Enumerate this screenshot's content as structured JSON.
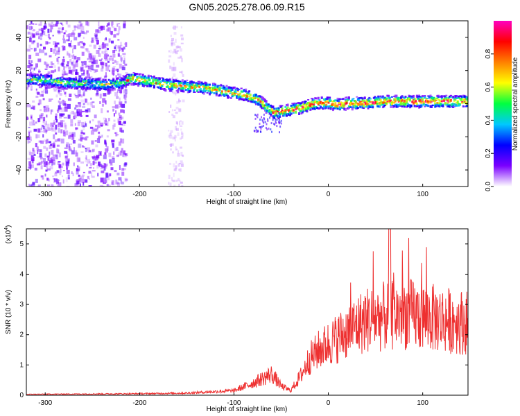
{
  "figure_title": "GN05.2025.278.06.09.R15",
  "chart_data": [
    {
      "type": "heatmap",
      "title": "",
      "xlabel": "Height of straight line (km)",
      "ylabel": "Frequency (Hz)",
      "xlim": [
        -320,
        148
      ],
      "ylim": [
        -50,
        50
      ],
      "x_ticks": [
        -300,
        -200,
        -100,
        0,
        100
      ],
      "y_ticks": [
        -40,
        -20,
        0,
        20,
        40
      ],
      "colorbar": {
        "label": "Normalized spectral amplitude",
        "range": [
          0,
          1
        ],
        "ticks": [
          "0.0",
          "0.2",
          "0.4",
          "0.6",
          "0.8"
        ],
        "tick_values": [
          0.0,
          0.2,
          0.4,
          0.6,
          0.8
        ],
        "colormap": [
          "#ffffff",
          "#7b00ff",
          "#0000ff",
          "#00c8ff",
          "#00ff40",
          "#ffff00",
          "#ff8000",
          "#ff0000",
          "#ff00c0"
        ]
      },
      "ridge": {
        "x": [
          -320,
          -300,
          -280,
          -260,
          -240,
          -220,
          -210,
          -190,
          -170,
          -150,
          -130,
          -110,
          -90,
          -75,
          -65,
          -58,
          -50,
          -40,
          -30,
          -20,
          -10,
          0,
          10,
          20,
          40,
          60,
          80,
          100,
          120,
          148
        ],
        "y": [
          15,
          15,
          13,
          13,
          12,
          13,
          16,
          14,
          12,
          11,
          10,
          8,
          6,
          3,
          -2,
          -5,
          -4,
          -3,
          -2,
          0,
          1,
          1,
          0,
          1,
          1,
          2,
          2,
          2,
          2,
          2
        ]
      },
      "noise_region_x": [
        -320,
        -215
      ],
      "noise_column_x": [
        -170,
        -155
      ]
    },
    {
      "type": "line",
      "title": "",
      "xlabel": "Height of straight line (km)",
      "ylabel": "SNR (10 * v/v)",
      "y_multiplier": "(x10",
      "y_multiplier_exp": "4",
      "y_multiplier_close": ")",
      "xlim": [
        -320,
        148
      ],
      "ylim": [
        0,
        55000
      ],
      "x_ticks": [
        -300,
        -200,
        -100,
        0,
        100
      ],
      "y_ticks": [
        0,
        10000,
        20000,
        30000,
        40000,
        50000
      ],
      "y_tick_labels": [
        "0",
        "1",
        "2",
        "3",
        "4",
        "5"
      ],
      "series_color": "#ee3030",
      "envelope": {
        "x": [
          -320,
          -200,
          -150,
          -100,
          -80,
          -60,
          -50,
          -40,
          -30,
          -20,
          -10,
          0,
          20,
          40,
          60,
          80,
          100,
          120,
          148
        ],
        "y": [
          300,
          500,
          700,
          1500,
          4000,
          7000,
          3000,
          1500,
          6000,
          12000,
          15000,
          17000,
          21000,
          25000,
          26000,
          27000,
          26000,
          25000,
          24000
        ]
      }
    }
  ]
}
